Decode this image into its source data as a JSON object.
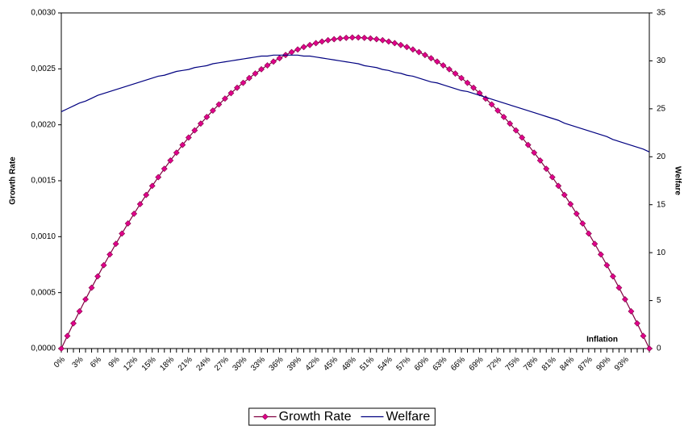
{
  "chart_data": {
    "type": "line",
    "x_label": "Inflation",
    "y_label": "Growth Rate",
    "y2_label": "Welfare",
    "categories": [
      "0%",
      null,
      null,
      "3%",
      null,
      null,
      "6%",
      null,
      null,
      "9%",
      null,
      null,
      "12%",
      null,
      null,
      "15%",
      null,
      null,
      "18%",
      null,
      null,
      "21%",
      null,
      null,
      "24%",
      null,
      null,
      "27%",
      null,
      null,
      "30%",
      null,
      null,
      "33%",
      null,
      null,
      "36%",
      null,
      null,
      "39%",
      null,
      null,
      "42%",
      null,
      null,
      "45%",
      null,
      null,
      "48%",
      null,
      null,
      "51%",
      null,
      null,
      "54%",
      null,
      null,
      "57%",
      null,
      null,
      "60%",
      null,
      null,
      "63%",
      null,
      null,
      "66%",
      null,
      null,
      "69%",
      null,
      null,
      "72%",
      null,
      null,
      "75%",
      null,
      null,
      "78%",
      null,
      null,
      "81%",
      null,
      null,
      "84%",
      null,
      null,
      "87%",
      null,
      null,
      "90%",
      null,
      null,
      "93%",
      null,
      null,
      null,
      null
    ],
    "series": [
      {
        "name": "Growth Rate",
        "color": "#800040",
        "marker_color": "#E0008C",
        "marker": "diamond",
        "values": [
          0,
          0.000113,
          0.000225,
          0.000333,
          0.00044,
          0.000544,
          0.000645,
          0.000745,
          0.000841,
          0.000936,
          0.001028,
          0.001118,
          0.001205,
          0.001291,
          0.001373,
          0.001454,
          0.001532,
          0.001607,
          0.001681,
          0.001751,
          0.00182,
          0.001886,
          0.00195,
          0.002011,
          0.00207,
          0.002127,
          0.002182,
          0.002234,
          0.002283,
          0.002331,
          0.002375,
          0.002418,
          0.002458,
          0.002496,
          0.002531,
          0.002565,
          0.002595,
          0.002624,
          0.00265,
          0.002673,
          0.002695,
          0.002713,
          0.00273,
          0.002744,
          0.002756,
          0.002765,
          0.002772,
          0.002777,
          0.00278,
          0.00278,
          0.002777,
          0.002772,
          0.002765,
          0.002756,
          0.002744,
          0.00273,
          0.002713,
          0.002695,
          0.002673,
          0.00265,
          0.002624,
          0.002595,
          0.002565,
          0.002531,
          0.002496,
          0.002458,
          0.002418,
          0.002375,
          0.002331,
          0.002283,
          0.002234,
          0.002182,
          0.002127,
          0.00207,
          0.002011,
          0.00195,
          0.001886,
          0.00182,
          0.001751,
          0.001681,
          0.001607,
          0.001532,
          0.001454,
          0.001373,
          0.001291,
          0.001205,
          0.001118,
          0.001028,
          0.000936,
          0.000841,
          0.000745,
          0.000645,
          0.000544,
          0.00044,
          0.000333,
          0.000225,
          0.000113,
          0
        ]
      },
      {
        "name": "Welfare",
        "color": "#000080",
        "axis": "y2",
        "values": [
          24.7,
          25.0,
          25.3,
          25.6,
          25.8,
          26.1,
          26.4,
          26.6,
          26.8,
          27.0,
          27.2,
          27.4,
          27.6,
          27.8,
          28.0,
          28.2,
          28.4,
          28.5,
          28.7,
          28.9,
          29.0,
          29.1,
          29.3,
          29.4,
          29.5,
          29.7,
          29.8,
          29.9,
          30.0,
          30.1,
          30.2,
          30.3,
          30.4,
          30.5,
          30.5,
          30.6,
          30.6,
          30.6,
          30.6,
          30.6,
          30.5,
          30.5,
          30.4,
          30.3,
          30.2,
          30.1,
          30.0,
          29.9,
          29.8,
          29.7,
          29.5,
          29.4,
          29.3,
          29.1,
          29.0,
          28.8,
          28.7,
          28.5,
          28.4,
          28.2,
          28.0,
          27.8,
          27.7,
          27.5,
          27.3,
          27.1,
          26.9,
          26.8,
          26.6,
          26.4,
          26.2,
          26.0,
          25.8,
          25.6,
          25.4,
          25.2,
          25.0,
          24.8,
          24.6,
          24.4,
          24.2,
          24.0,
          23.8,
          23.5,
          23.3,
          23.1,
          22.9,
          22.7,
          22.5,
          22.3,
          22.1,
          21.8,
          21.6,
          21.4,
          21.2,
          21.0,
          20.8,
          20.5
        ]
      }
    ],
    "ylim": [
      0,
      0.003
    ],
    "yticks": [
      {
        "value": 0,
        "label": "0,0000"
      },
      {
        "value": 0.0005,
        "label": "0,0005"
      },
      {
        "value": 0.001,
        "label": "0,0010"
      },
      {
        "value": 0.0015,
        "label": "0,0015"
      },
      {
        "value": 0.002,
        "label": "0,0020"
      },
      {
        "value": 0.0025,
        "label": "0,0025"
      },
      {
        "value": 0.003,
        "label": "0,0030"
      }
    ],
    "y2lim": [
      0,
      35
    ],
    "y2ticks": [
      0,
      5,
      10,
      15,
      20,
      25,
      30,
      35
    ],
    "grid": false,
    "legend": "bottom"
  }
}
